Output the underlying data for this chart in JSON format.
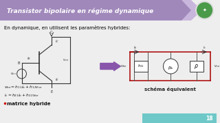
{
  "title": "Transistor bipolaire en régime dynamique",
  "title_color": "#ffffff",
  "header_bg_color": "#a088bb",
  "header_arrow_color": "#c0a8d8",
  "body_bg_color": "#eeeeee",
  "subtitle": "En dynamique, en utilisent les paramètres hybrides:",
  "subtitle_color": "#000000",
  "label_matrix": "matrice hybride",
  "label_schema": "schéma équivalent",
  "footer_bg_color": "#6ec8c8",
  "page_number": "18",
  "circuit_color": "#333333",
  "equiv_color": "#aa0000",
  "arrow_color": "#8855aa"
}
